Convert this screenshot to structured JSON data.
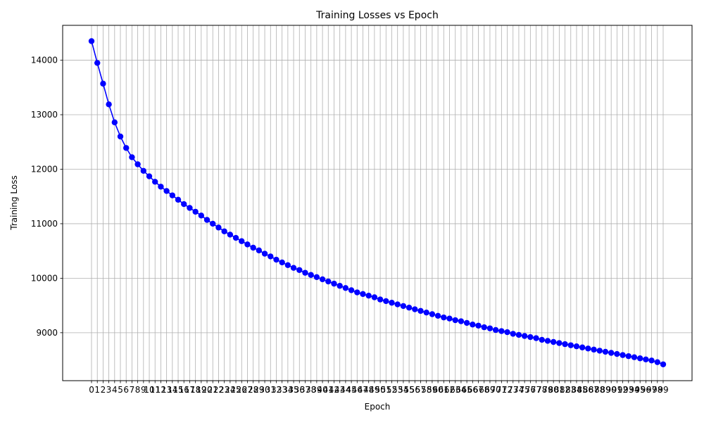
{
  "chart_data": {
    "type": "line",
    "title": "Training Losses vs Epoch",
    "xlabel": "Epoch",
    "ylabel": "Training Loss",
    "xlim": [
      -5,
      104
    ],
    "ylim": [
      8120,
      14640
    ],
    "grid": true,
    "legend": "none",
    "colors": {
      "line": "#0000ff",
      "grid": "#b0b0b0",
      "axes": "#000000"
    },
    "y_ticks": [
      9000,
      10000,
      11000,
      12000,
      13000,
      14000
    ],
    "x_tick_labels": [
      "0",
      "1",
      "2",
      "3",
      "4",
      "5",
      "6",
      "7",
      "8",
      "9",
      "10",
      "11",
      "12",
      "13",
      "14",
      "15",
      "16",
      "17",
      "18",
      "19",
      "20",
      "21",
      "22",
      "23",
      "24",
      "25",
      "26",
      "27",
      "28",
      "29",
      "30",
      "31",
      "32",
      "33",
      "34",
      "35",
      "36",
      "37",
      "38",
      "39",
      "40",
      "41",
      "42",
      "43",
      "44",
      "45",
      "46",
      "47",
      "48",
      "49",
      "50",
      "51",
      "52",
      "53",
      "54",
      "55",
      "56",
      "57",
      "58",
      "59",
      "60",
      "61",
      "62",
      "63",
      "64",
      "65",
      "66",
      "67",
      "68",
      "69",
      "70",
      "71",
      "72",
      "73",
      "74",
      "75",
      "76",
      "77",
      "78",
      "79",
      "80",
      "81",
      "82",
      "83",
      "84",
      "85",
      "86",
      "87",
      "88",
      "89",
      "90",
      "91",
      "92",
      "93",
      "94",
      "95",
      "96",
      "97",
      "98",
      "99"
    ],
    "x": [
      0,
      1,
      2,
      3,
      4,
      5,
      6,
      7,
      8,
      9,
      10,
      11,
      12,
      13,
      14,
      15,
      16,
      17,
      18,
      19,
      20,
      21,
      22,
      23,
      24,
      25,
      26,
      27,
      28,
      29,
      30,
      31,
      32,
      33,
      34,
      35,
      36,
      37,
      38,
      39,
      40,
      41,
      42,
      43,
      44,
      45,
      46,
      47,
      48,
      49,
      50,
      51,
      52,
      53,
      54,
      55,
      56,
      57,
      58,
      59,
      60,
      61,
      62,
      63,
      64,
      65,
      66,
      67,
      68,
      69,
      70,
      71,
      72,
      73,
      74,
      75,
      76,
      77,
      78,
      79,
      80,
      81,
      82,
      83,
      84,
      85,
      86,
      87,
      88,
      89,
      90,
      91,
      92,
      93,
      94,
      95,
      96,
      97,
      98,
      99
    ],
    "series": [
      {
        "values": [
          14350,
          13950,
          13570,
          13190,
          12860,
          12600,
          12390,
          12220,
          12090,
          11970,
          11870,
          11770,
          11680,
          11600,
          11520,
          11440,
          11360,
          11290,
          11220,
          11150,
          11070,
          11000,
          10930,
          10860,
          10800,
          10740,
          10680,
          10620,
          10560,
          10510,
          10450,
          10400,
          10340,
          10290,
          10240,
          10190,
          10150,
          10100,
          10060,
          10020,
          9980,
          9940,
          9900,
          9860,
          9820,
          9780,
          9740,
          9710,
          9680,
          9650,
          9610,
          9580,
          9550,
          9520,
          9490,
          9460,
          9430,
          9400,
          9370,
          9340,
          9310,
          9280,
          9260,
          9230,
          9210,
          9180,
          9150,
          9130,
          9100,
          9080,
          9050,
          9030,
          9010,
          8980,
          8960,
          8940,
          8920,
          8900,
          8870,
          8850,
          8830,
          8810,
          8790,
          8770,
          8750,
          8730,
          8710,
          8690,
          8670,
          8650,
          8630,
          8610,
          8590,
          8570,
          8550,
          8530,
          8510,
          8490,
          8460,
          8420
        ]
      }
    ]
  }
}
